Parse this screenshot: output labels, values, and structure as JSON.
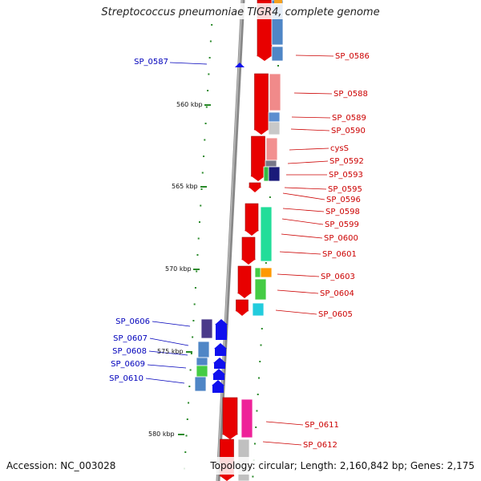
{
  "title": "Streptococcus pneumoniae TIGR4, complete genome",
  "footer": {
    "accession": "Accession: NC_003028",
    "topology": "Topology: circular; Length: 2,160,842 bp; Genes: 2,175"
  },
  "colors": {
    "forward_arrow": "#e80000",
    "reverse_arrow": "#1010ee",
    "forward_label": "#cc0000",
    "reverse_label": "#0000bb",
    "tick": "#2a8a2a",
    "backbone": "#888888"
  },
  "kbp_markers": [
    "560 kbp",
    "565 kbp",
    "570 kbp",
    "575 kbp",
    "580 kbp"
  ],
  "forward_genes": [
    "SP_0586",
    "SP_0588",
    "SP_0589",
    "SP_0590",
    "cysS",
    "SP_0592",
    "SP_0593",
    "SP_0595",
    "SP_0596",
    "SP_0598",
    "SP_0599",
    "SP_0600",
    "SP_0601",
    "SP_0603",
    "SP_0604",
    "SP_0605",
    "SP_0611",
    "SP_0612"
  ],
  "reverse_genes": [
    "SP_0587",
    "SP_0606",
    "SP_0607",
    "SP_0608",
    "SP_0609",
    "SP_0610"
  ]
}
